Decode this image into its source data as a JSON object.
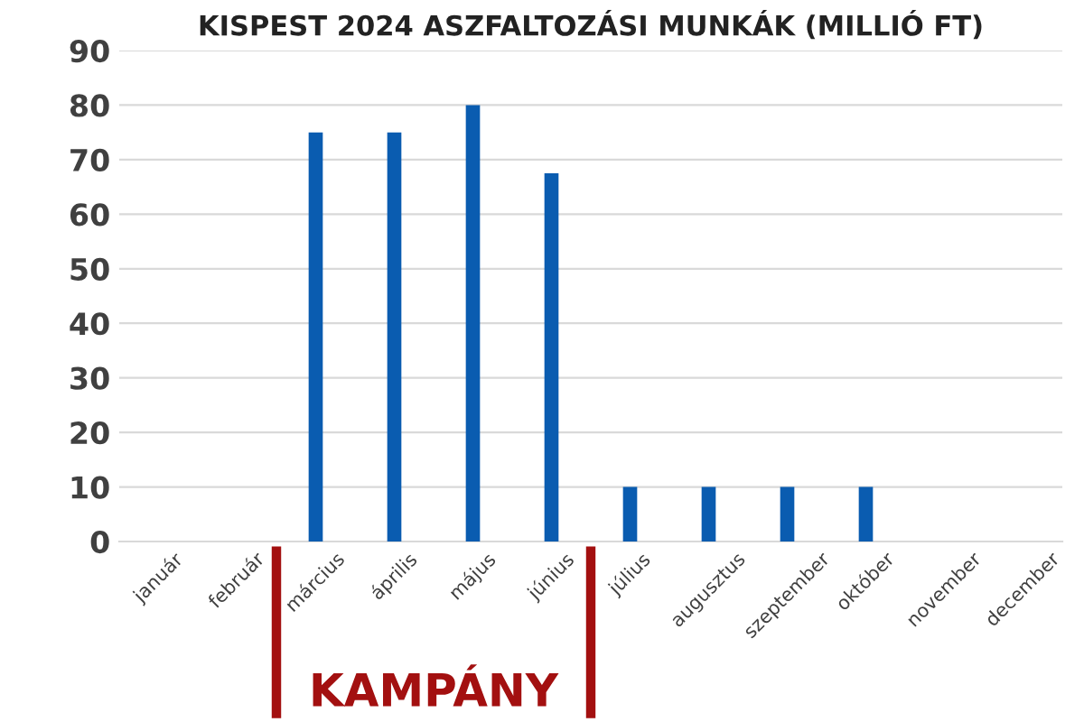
{
  "chart_data": {
    "type": "bar",
    "title": "KISPEST 2024 ASZFALTOZÁSI MUNKÁK (MILLIÓ FT)",
    "categories": [
      "január",
      "február",
      "március",
      "április",
      "május",
      "június",
      "július",
      "augusztus",
      "szeptember",
      "október",
      "november",
      "december"
    ],
    "values": [
      0,
      0,
      75,
      75,
      80,
      67.5,
      10,
      10,
      10,
      10,
      0,
      0
    ],
    "color": "#0a5cb0",
    "ylim": [
      0,
      90
    ],
    "yticks": [
      0,
      10,
      20,
      30,
      40,
      50,
      60,
      70,
      80,
      90
    ],
    "grid": "y",
    "annotations": [
      "KAMPÁNY"
    ]
  }
}
